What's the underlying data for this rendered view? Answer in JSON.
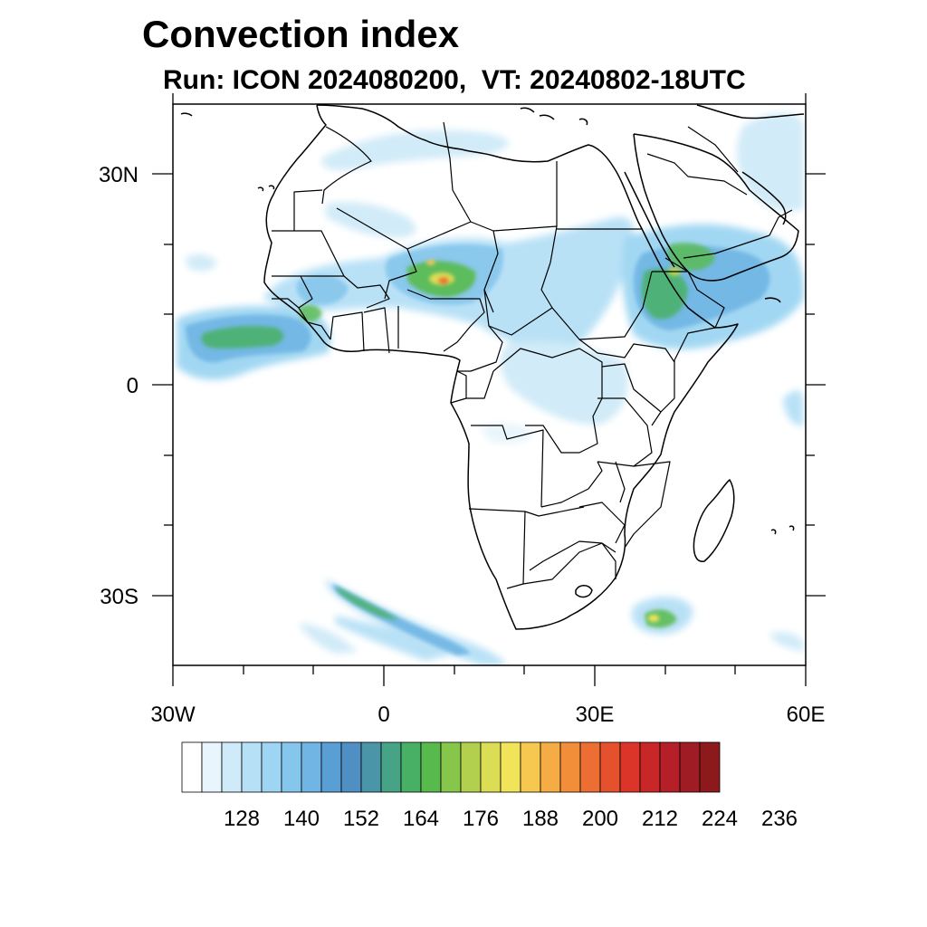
{
  "header": {
    "title": "Convection index",
    "subtitle": "Run: ICON 2024080200,  VT: 20240802-18UTC"
  },
  "map": {
    "region": "Africa",
    "lon_range": [
      -30,
      60
    ],
    "lat_range": [
      -40,
      40
    ],
    "lat_labels": [
      "30N",
      "0",
      "30S"
    ],
    "lon_labels": [
      "30W",
      "0",
      "30E",
      "60E"
    ],
    "coast_color": "#000000"
  },
  "colorbar": {
    "labels": [
      "128",
      "140",
      "152",
      "164",
      "176",
      "188",
      "200",
      "212",
      "224",
      "236"
    ],
    "colors": [
      "#ffffff",
      "#e8f5fc",
      "#cfeaf8",
      "#b6e0f6",
      "#9dd5f2",
      "#85c6ec",
      "#70b5e4",
      "#5a9ed6",
      "#4f8fc4",
      "#4a95a8",
      "#47a386",
      "#48b064",
      "#58ba4c",
      "#86c64a",
      "#b2d04e",
      "#dbdd55",
      "#f2e45a",
      "#f7c84f",
      "#f5ac45",
      "#f28e3a",
      "#ed6e32",
      "#e5512c",
      "#db3529",
      "#c92628",
      "#b51f27",
      "#a01c24",
      "#8c1a1c"
    ]
  }
}
